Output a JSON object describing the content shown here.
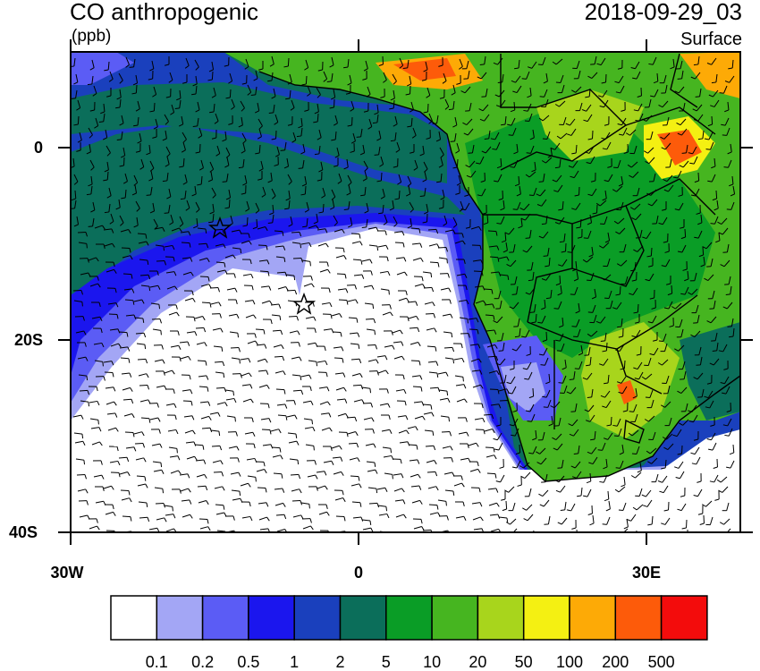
{
  "header": {
    "title": "CO anthropogenic",
    "units": "(ppb)",
    "datetime": "2018-09-29_03",
    "level": "Surface"
  },
  "axes": {
    "y_ticks": [
      "0",
      "20S",
      "40S"
    ],
    "x_ticks": [
      "30W",
      "0",
      "30E"
    ]
  },
  "colorbar": {
    "labels": [
      "0.1",
      "0.2",
      "0.5",
      "1",
      "2",
      "5",
      "10",
      "20",
      "50",
      "100",
      "200",
      "500"
    ],
    "colors": [
      "#ffffff",
      "#a3a6f5",
      "#5b5cf5",
      "#1b16ee",
      "#1a40bd",
      "#0b6e5a",
      "#0a9d26",
      "#46b520",
      "#a8d51c",
      "#f4f012",
      "#fdaa06",
      "#fd5b0a",
      "#f30c0c"
    ]
  },
  "markers": [
    "star",
    "star"
  ]
}
